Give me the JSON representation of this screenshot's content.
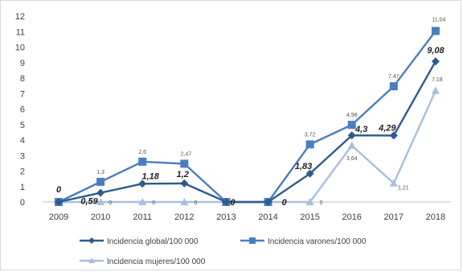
{
  "chart_data": {
    "type": "line",
    "title": "",
    "xlabel": "",
    "ylabel": "",
    "categories": [
      "2009",
      "2010",
      "2011",
      "2012",
      "2013",
      "2014",
      "2015",
      "2016",
      "2017",
      "2018"
    ],
    "ylim": [
      0,
      12
    ],
    "yticks": [
      "0",
      "1",
      "2",
      "3",
      "4",
      "5",
      "6",
      "7",
      "8",
      "9",
      "10",
      "11",
      "12"
    ],
    "grid": false,
    "legend_position": "bottom",
    "series": [
      {
        "name": "Incidencia global/100 000",
        "color": "#2e5b8e",
        "marker": "diamond",
        "values": [
          0,
          0.59,
          1.18,
          1.2,
          0,
          0,
          1.83,
          4.3,
          4.29,
          9.08
        ],
        "labels": [
          "0",
          "0,59",
          "1,18",
          "1,2",
          "0",
          "0",
          "1,83",
          "4,3",
          "4,29",
          "9,08"
        ]
      },
      {
        "name": "Incidencia varones/100 000",
        "color": "#4a7ec2",
        "marker": "square",
        "values": [
          0,
          1.3,
          2.6,
          2.47,
          0,
          0,
          3.72,
          4.98,
          7.47,
          11.04
        ],
        "labels": [
          "",
          "1,3",
          "2,6",
          "2,47",
          "",
          "",
          "3,72",
          "4,98",
          "7,47",
          "11,04"
        ]
      },
      {
        "name": "Incidencia mujeres/100 000",
        "color": "#a9bfdc",
        "marker": "triangle",
        "values": [
          0,
          0,
          0,
          0,
          0,
          0,
          0,
          3.64,
          1.21,
          7.18
        ],
        "labels": [
          "",
          "0",
          "0",
          "0",
          "",
          "",
          "0",
          "3,64",
          "1,21",
          "7,18"
        ]
      }
    ]
  }
}
